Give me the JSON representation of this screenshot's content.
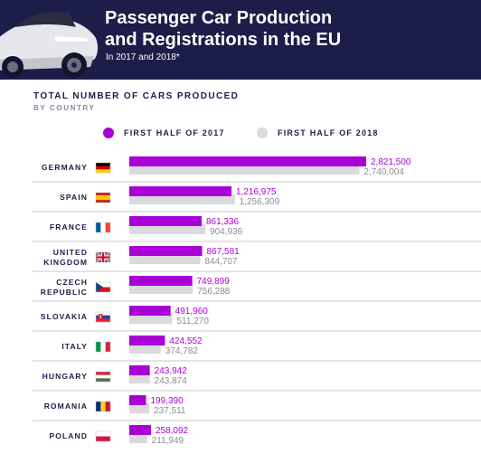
{
  "header": {
    "title": "Passenger Car Production\nand Registrations in the EU",
    "subtitle": "In 2017 and 2018*"
  },
  "colors": {
    "header_bg": "#1d1d4a",
    "series_2017": "#a800d6",
    "series_2018": "#d9d9de",
    "label_2017": "#a800d6",
    "label_2018": "#8c8c96",
    "country_text": "#1d1d4a",
    "divider": "#c9c9d1"
  },
  "chart_data": {
    "type": "bar",
    "title": "TOTAL NUMBER OF CARS PRODUCED",
    "subtitle": "BY COUNTRY",
    "legend_position": "top",
    "categories": [
      "GERMANY",
      "SPAIN",
      "FRANCE",
      "UNITED KINGDOM",
      "CZECH REPUBLIC",
      "SLOVAKIA",
      "ITALY",
      "HUNGARY",
      "ROMANIA",
      "POLAND"
    ],
    "category_lines": [
      [
        "GERMANY"
      ],
      [
        "SPAIN"
      ],
      [
        "FRANCE"
      ],
      [
        "UNITED",
        "KINGDOM"
      ],
      [
        "CZECH",
        "REPUBLIC"
      ],
      [
        "SLOVAKIA"
      ],
      [
        "ITALY"
      ],
      [
        "HUNGARY"
      ],
      [
        "ROMANIA"
      ],
      [
        "POLAND"
      ]
    ],
    "flags": [
      "germany-flag-icon",
      "spain-flag-icon",
      "france-flag-icon",
      "uk-flag-icon",
      "czech-flag-icon",
      "slovakia-flag-icon",
      "italy-flag-icon",
      "hungary-flag-icon",
      "romania-flag-icon",
      "poland-flag-icon"
    ],
    "series": [
      {
        "name": "FIRST HALF OF 2017",
        "values": [
          2821500,
          1216975,
          861336,
          867581,
          749899,
          491960,
          424552,
          243942,
          199390,
          258092
        ],
        "labels": [
          "2,821,500",
          "1,216,975",
          "861,336",
          "867,581",
          "749,899",
          "491,960",
          "424,552",
          "243,942",
          "199,390",
          "258,092"
        ]
      },
      {
        "name": "FIRST HALF OF 2018",
        "values": [
          2740004,
          1256309,
          904936,
          844707,
          756288,
          511270,
          374782,
          243874,
          237511,
          211949
        ],
        "labels": [
          "2,740,004",
          "1,256,309",
          "904,936",
          "844,707",
          "756,288",
          "511,270",
          "374,782",
          "243,874",
          "237,511",
          "211,949"
        ]
      }
    ]
  }
}
